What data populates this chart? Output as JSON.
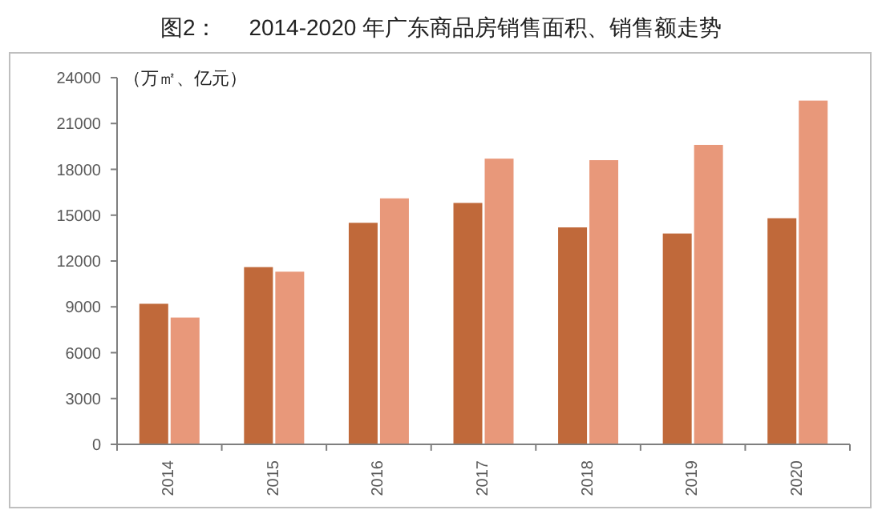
{
  "chart_data": {
    "type": "bar",
    "title": "图2：     2014-2020 年广东商品房销售面积、销售额走势",
    "annotations": [
      "（万㎡、亿元）"
    ],
    "categories": [
      "2014",
      "2015",
      "2016",
      "2017",
      "2018",
      "2019",
      "2020"
    ],
    "series": [
      {
        "color": "#c0693a",
        "values": [
          9200,
          11600,
          14500,
          15800,
          14200,
          13800,
          14800
        ]
      },
      {
        "color": "#e8987a",
        "values": [
          8300,
          11300,
          16100,
          18700,
          18600,
          19600,
          22500
        ]
      }
    ],
    "ylim": [
      0,
      24000
    ],
    "yticks": [
      0,
      3000,
      6000,
      9000,
      12000,
      15000,
      18000,
      21000,
      24000
    ],
    "grid": false
  }
}
